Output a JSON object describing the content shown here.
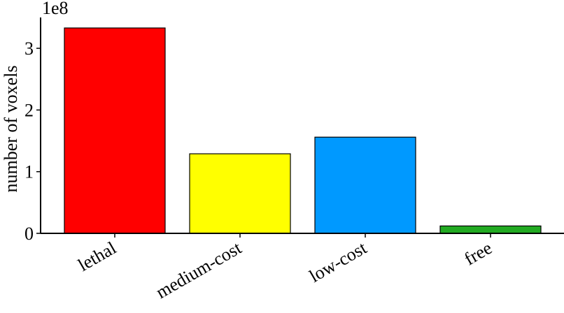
{
  "chart_data": {
    "type": "bar",
    "title": "",
    "xlabel": "",
    "ylabel": "number of voxels",
    "y_scale_label": "1e8",
    "categories": [
      "lethal",
      "medium-cost",
      "low-cost",
      "free"
    ],
    "values": [
      333000000,
      129000000,
      156000000,
      12000000
    ],
    "colors": [
      "#ff0000",
      "#ffff00",
      "#0099ff",
      "#22aa22"
    ],
    "ylim": [
      0,
      350000000
    ],
    "yticks": [
      0,
      100000000,
      200000000,
      300000000
    ],
    "ytick_labels": [
      "0",
      "1",
      "2",
      "3"
    ],
    "grid": false,
    "legend": "none"
  }
}
